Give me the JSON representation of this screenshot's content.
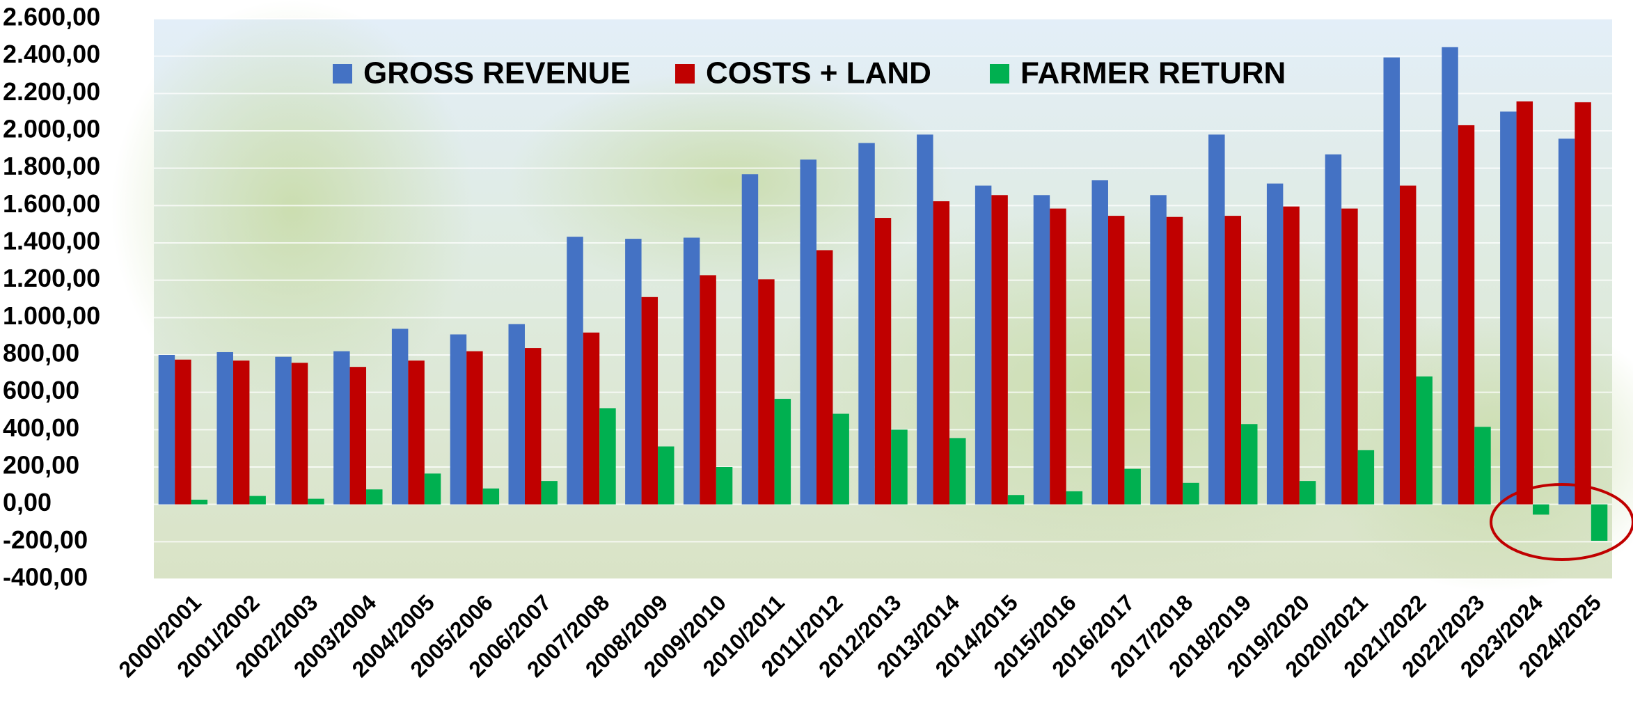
{
  "chart_data": {
    "type": "bar",
    "categories": [
      "2000/2001",
      "2001/2002",
      "2002/2003",
      "2003/2004",
      "2004/2005",
      "2005/2006",
      "2006/2007",
      "2007/2008",
      "2008/2009",
      "2009/2010",
      "2010/2011",
      "2011/2012",
      "2012/2013",
      "2013/2014",
      "2014/2015",
      "2015/2016",
      "2016/2017",
      "2017/2018",
      "2018/2019",
      "2019/2020",
      "2020/2021",
      "2021/2022",
      "2022/2023",
      "2023/2024",
      "2024/2025"
    ],
    "series": [
      {
        "name": "GROSS REVENUE",
        "color": "#4472c4",
        "values": [
          800,
          815,
          790,
          820,
          940,
          910,
          965,
          1433,
          1422,
          1428,
          1768,
          1846,
          1935,
          1980,
          1707,
          1656,
          1735,
          1656,
          1980,
          1718,
          1874,
          2393,
          2448,
          2103,
          1958
        ]
      },
      {
        "name": "COSTS + LAND",
        "color": "#c00000",
        "values": [
          775,
          770,
          758,
          736,
          770,
          820,
          837,
          920,
          1110,
          1227,
          1205,
          1361,
          1534,
          1623,
          1656,
          1584,
          1545,
          1539,
          1545,
          1595,
          1584,
          1707,
          2030,
          2158,
          2153
        ]
      },
      {
        "name": "FARMER RETURN",
        "color": "#00b050",
        "values": [
          25,
          45,
          30,
          80,
          165,
          85,
          125,
          515,
          310,
          200,
          565,
          485,
          400,
          355,
          50,
          70,
          190,
          115,
          430,
          125,
          290,
          685,
          415,
          -55,
          -195
        ]
      }
    ],
    "ylim": [
      -400,
      2600
    ],
    "yticks": [
      {
        "value": -400,
        "label": "-400,00"
      },
      {
        "value": -200,
        "label": "-200,00"
      },
      {
        "value": 0,
        "label": "0,00"
      },
      {
        "value": 200,
        "label": "200,00"
      },
      {
        "value": 400,
        "label": "400,00"
      },
      {
        "value": 600,
        "label": "600,00"
      },
      {
        "value": 800,
        "label": "800,00"
      },
      {
        "value": 1000,
        "label": "1.000,00"
      },
      {
        "value": 1200,
        "label": "1.200,00"
      },
      {
        "value": 1400,
        "label": "1.400,00"
      },
      {
        "value": 1600,
        "label": "1.600,00"
      },
      {
        "value": 1800,
        "label": "1.800,00"
      },
      {
        "value": 2000,
        "label": "2.000,00"
      },
      {
        "value": 2200,
        "label": "2.200,00"
      },
      {
        "value": 2400,
        "label": "2.400,00"
      },
      {
        "value": 2600,
        "label": "2.600,00"
      }
    ],
    "grid": true,
    "legend": "top"
  }
}
